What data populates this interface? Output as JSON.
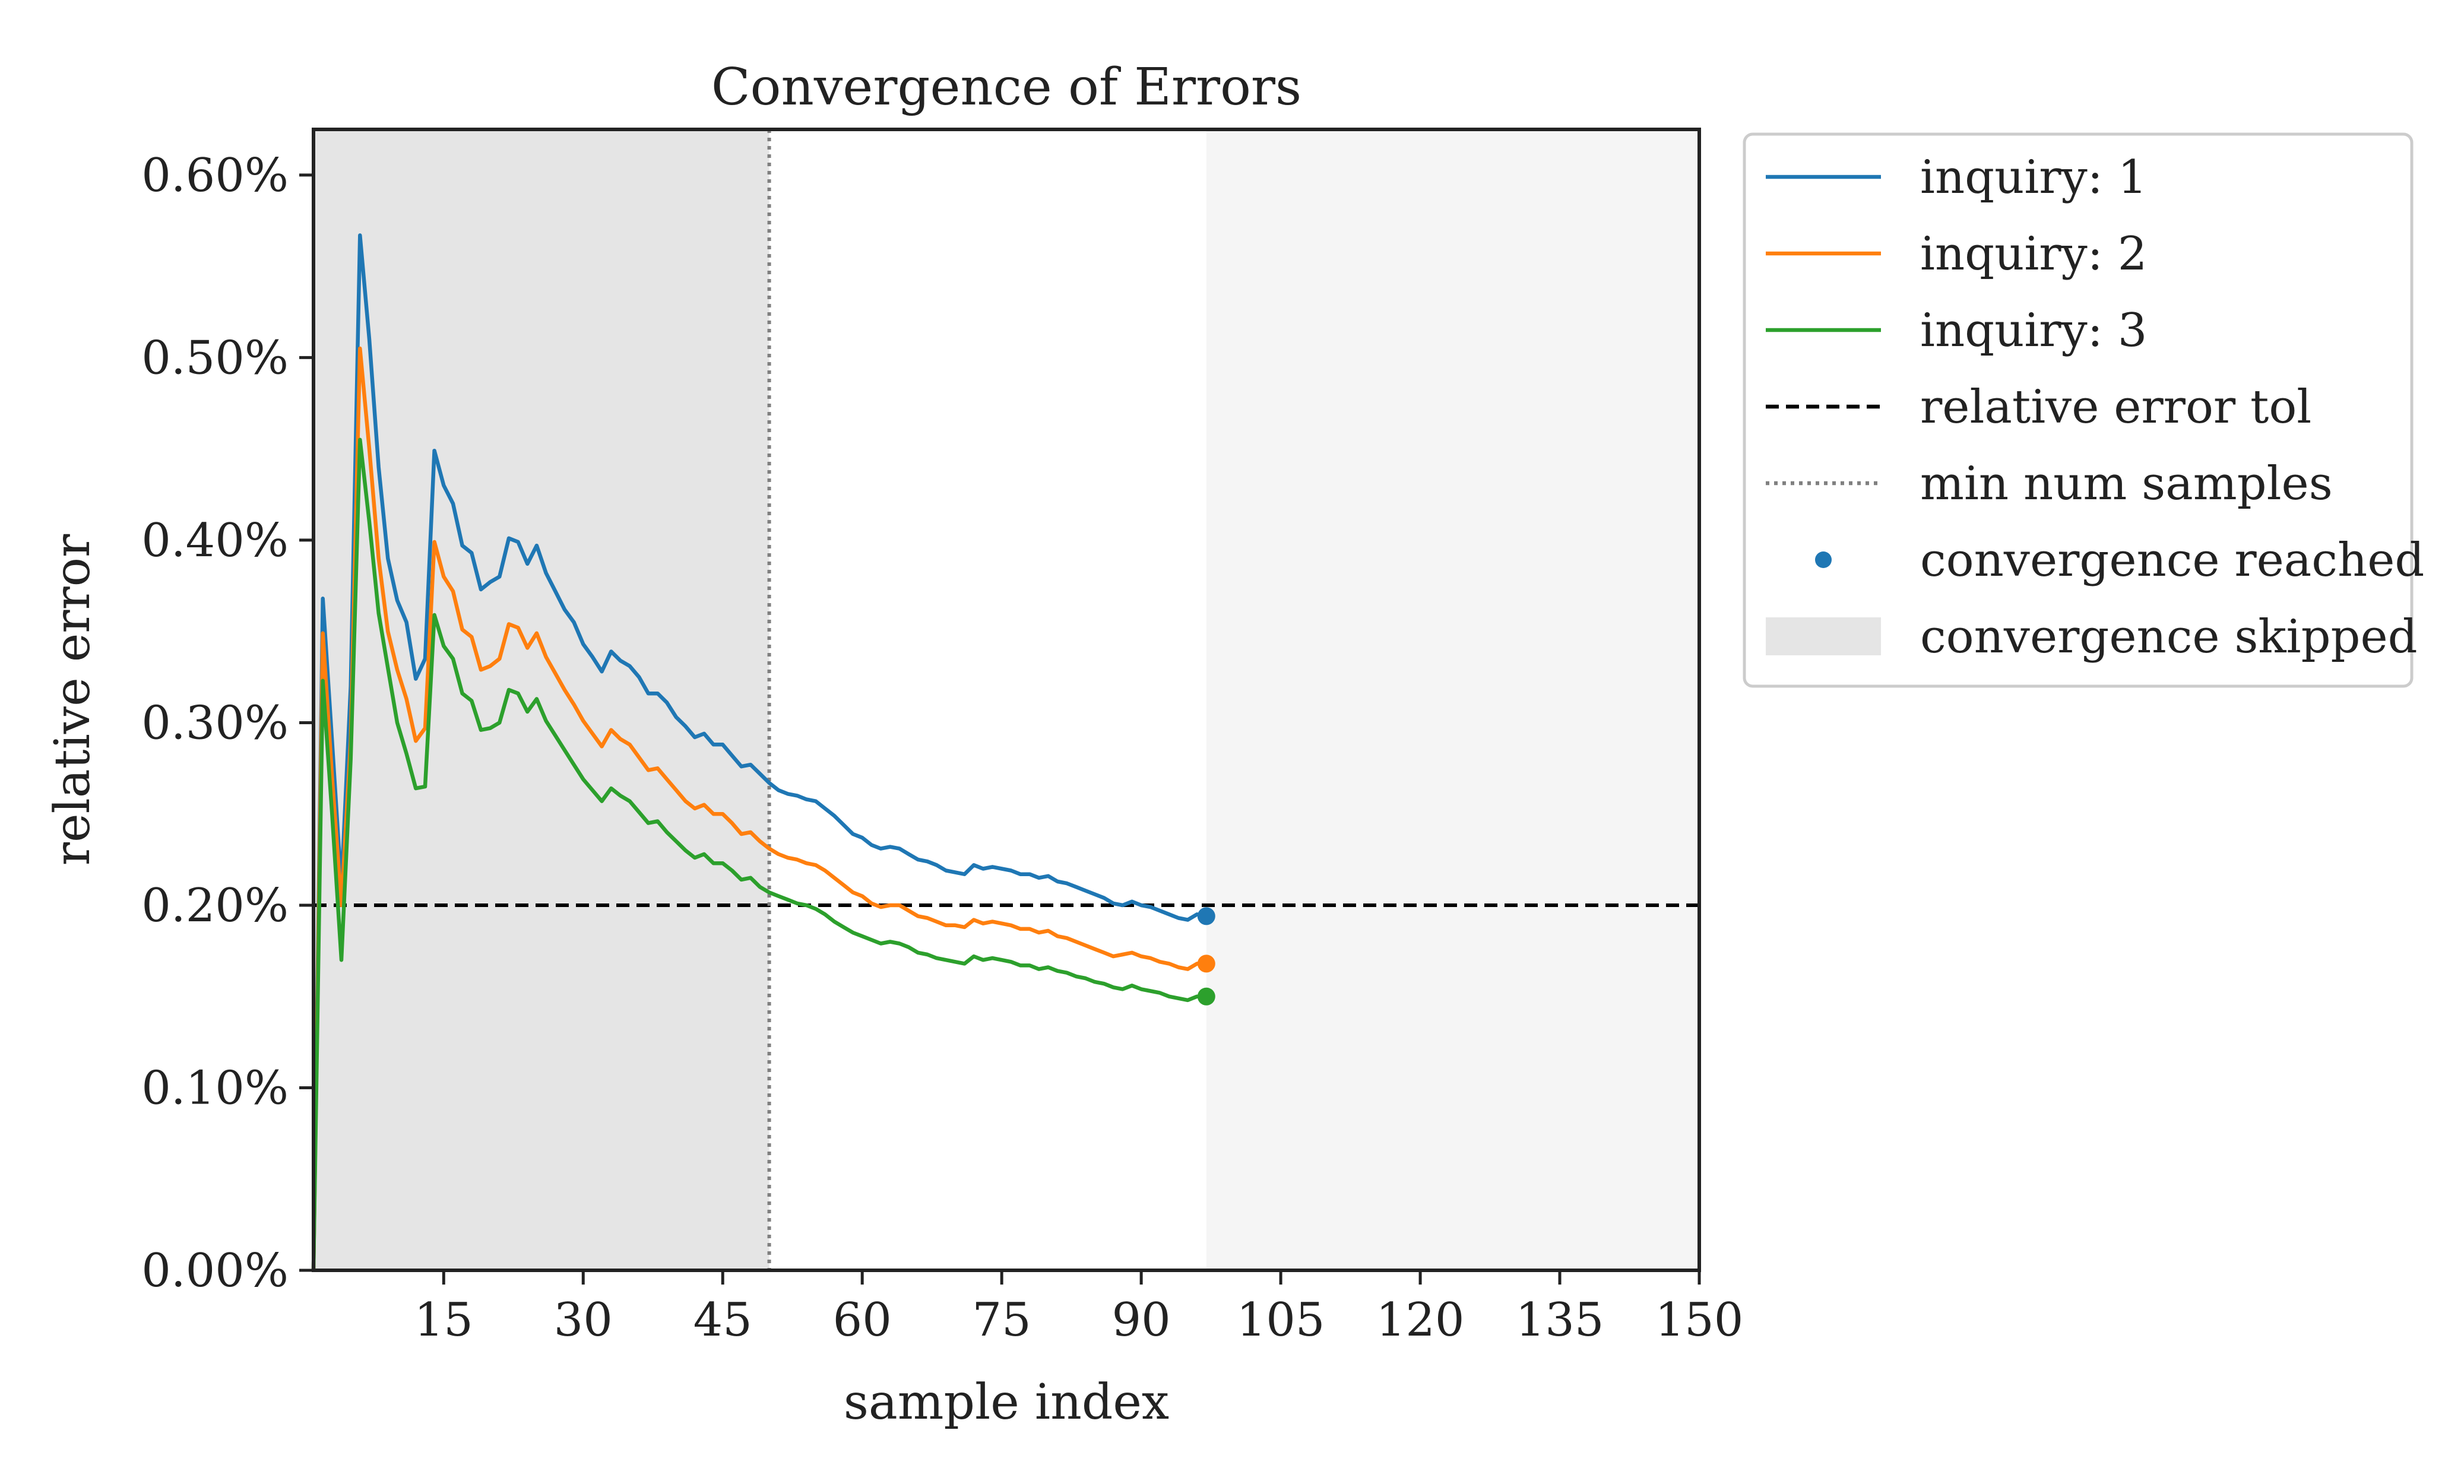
{
  "chart_data": {
    "type": "line",
    "title": "Convergence of Errors",
    "xlabel": "sample index",
    "ylabel": "relative error",
    "xlim": [
      1,
      150
    ],
    "ylim": [
      0.0,
      0.00625
    ],
    "xticks": [
      15,
      30,
      45,
      60,
      75,
      90,
      105,
      120,
      135,
      150
    ],
    "xtick_labels": [
      "15",
      "30",
      "45",
      "60",
      "75",
      "90",
      "105",
      "120",
      "135",
      "150"
    ],
    "yticks": [
      0.0,
      0.001,
      0.002,
      0.003,
      0.004,
      0.005,
      0.006
    ],
    "ytick_labels": [
      "0.00%",
      "0.10%",
      "0.20%",
      "0.30%",
      "0.40%",
      "0.50%",
      "0.60%"
    ],
    "grid": false,
    "legend_position": "outside-upper-right",
    "relative_error_tol": 0.002,
    "min_num_samples": 50,
    "convergence_index": 97,
    "skipped_regions": [
      [
        1,
        50
      ],
      [
        97,
        150
      ]
    ],
    "x": [
      1,
      2,
      3,
      4,
      5,
      6,
      7,
      8,
      9,
      10,
      11,
      12,
      13,
      14,
      15,
      16,
      17,
      18,
      19,
      20,
      21,
      22,
      23,
      24,
      25,
      26,
      27,
      28,
      29,
      30,
      31,
      32,
      33,
      34,
      35,
      36,
      37,
      38,
      39,
      40,
      41,
      42,
      43,
      44,
      45,
      46,
      47,
      48,
      49,
      50,
      51,
      52,
      53,
      54,
      55,
      56,
      57,
      58,
      59,
      60,
      61,
      62,
      63,
      64,
      65,
      66,
      67,
      68,
      69,
      70,
      71,
      72,
      73,
      74,
      75,
      76,
      77,
      78,
      79,
      80,
      81,
      82,
      83,
      84,
      85,
      86,
      87,
      88,
      89,
      90,
      91,
      92,
      93,
      94,
      95,
      96,
      97
    ],
    "series": [
      {
        "name": "inquiry: 1",
        "color": "#1f77b4",
        "values": [
          0.0,
          0.00368,
          0.0029,
          0.0021,
          0.0032,
          0.00567,
          0.0051,
          0.0044,
          0.0039,
          0.00367,
          0.00355,
          0.00324,
          0.00335,
          0.00449,
          0.0043,
          0.0042,
          0.00397,
          0.00393,
          0.00373,
          0.00377,
          0.0038,
          0.00401,
          0.00399,
          0.00387,
          0.00397,
          0.00382,
          0.00372,
          0.00362,
          0.00355,
          0.00343,
          0.00336,
          0.00328,
          0.00339,
          0.00334,
          0.00331,
          0.00325,
          0.00316,
          0.00316,
          0.00311,
          0.00303,
          0.00298,
          0.00292,
          0.00294,
          0.00288,
          0.00288,
          0.00282,
          0.00276,
          0.00277,
          0.00272,
          0.00267,
          0.00263,
          0.00261,
          0.0026,
          0.00258,
          0.00257,
          0.00253,
          0.00249,
          0.00244,
          0.00239,
          0.00237,
          0.00233,
          0.00231,
          0.00232,
          0.00231,
          0.00228,
          0.00225,
          0.00224,
          0.00222,
          0.00219,
          0.00218,
          0.00217,
          0.00222,
          0.0022,
          0.00221,
          0.0022,
          0.00219,
          0.00217,
          0.00217,
          0.00215,
          0.00216,
          0.00213,
          0.00212,
          0.0021,
          0.00208,
          0.00206,
          0.00204,
          0.00201,
          0.002,
          0.00202,
          0.002,
          0.00199,
          0.00197,
          0.00195,
          0.00193,
          0.00192,
          0.00195,
          0.00194
        ]
      },
      {
        "name": "inquiry: 2",
        "color": "#ff7f0e",
        "values": [
          0.0,
          0.00349,
          0.0027,
          0.002,
          0.0029,
          0.00505,
          0.0045,
          0.0039,
          0.0035,
          0.00329,
          0.00313,
          0.0029,
          0.00297,
          0.00399,
          0.0038,
          0.00372,
          0.00351,
          0.00347,
          0.00329,
          0.00331,
          0.00335,
          0.00354,
          0.00352,
          0.00341,
          0.00349,
          0.00336,
          0.00327,
          0.00318,
          0.0031,
          0.00301,
          0.00294,
          0.00287,
          0.00296,
          0.00291,
          0.00288,
          0.00281,
          0.00274,
          0.00275,
          0.00269,
          0.00263,
          0.00257,
          0.00253,
          0.00255,
          0.0025,
          0.0025,
          0.00245,
          0.00239,
          0.0024,
          0.00235,
          0.00231,
          0.00228,
          0.00226,
          0.00225,
          0.00223,
          0.00222,
          0.00219,
          0.00215,
          0.00211,
          0.00207,
          0.00205,
          0.00201,
          0.00199,
          0.002,
          0.002,
          0.00197,
          0.00194,
          0.00193,
          0.00191,
          0.00189,
          0.00189,
          0.00188,
          0.00192,
          0.0019,
          0.00191,
          0.0019,
          0.00189,
          0.00187,
          0.00187,
          0.00185,
          0.00186,
          0.00183,
          0.00182,
          0.0018,
          0.00178,
          0.00176,
          0.00174,
          0.00172,
          0.00173,
          0.00174,
          0.00172,
          0.00171,
          0.00169,
          0.00168,
          0.00166,
          0.00165,
          0.00168,
          0.00168
        ]
      },
      {
        "name": "inquiry: 3",
        "color": "#2ca02c",
        "values": [
          0.0,
          0.00323,
          0.0025,
          0.0017,
          0.0028,
          0.00455,
          0.0041,
          0.0036,
          0.0033,
          0.003,
          0.00283,
          0.00264,
          0.00265,
          0.00359,
          0.00342,
          0.00335,
          0.00316,
          0.00312,
          0.00296,
          0.00297,
          0.003,
          0.00318,
          0.00316,
          0.00306,
          0.00313,
          0.00301,
          0.00293,
          0.00285,
          0.00277,
          0.00269,
          0.00263,
          0.00257,
          0.00264,
          0.0026,
          0.00257,
          0.00251,
          0.00245,
          0.00246,
          0.0024,
          0.00235,
          0.0023,
          0.00226,
          0.00228,
          0.00223,
          0.00223,
          0.00219,
          0.00214,
          0.00215,
          0.0021,
          0.00207,
          0.00205,
          0.00203,
          0.00201,
          0.002,
          0.00198,
          0.00195,
          0.00191,
          0.00188,
          0.00185,
          0.00183,
          0.00181,
          0.00179,
          0.0018,
          0.00179,
          0.00177,
          0.00174,
          0.00173,
          0.00171,
          0.0017,
          0.00169,
          0.00168,
          0.00172,
          0.0017,
          0.00171,
          0.0017,
          0.00169,
          0.00167,
          0.00167,
          0.00165,
          0.00166,
          0.00164,
          0.00163,
          0.00161,
          0.0016,
          0.00158,
          0.00157,
          0.00155,
          0.00154,
          0.00156,
          0.00154,
          0.00153,
          0.00152,
          0.0015,
          0.00149,
          0.00148,
          0.0015,
          0.0015
        ]
      }
    ],
    "convergence_points": [
      {
        "series": "inquiry: 1",
        "x": 97,
        "y": 0.00194,
        "color": "#1f77b4"
      },
      {
        "series": "inquiry: 2",
        "x": 97,
        "y": 0.00168,
        "color": "#ff7f0e"
      },
      {
        "series": "inquiry: 3",
        "x": 97,
        "y": 0.0015,
        "color": "#2ca02c"
      }
    ],
    "legend": [
      {
        "label": "inquiry: 1",
        "kind": "line",
        "color": "#1f77b4"
      },
      {
        "label": "inquiry: 2",
        "kind": "line",
        "color": "#ff7f0e"
      },
      {
        "label": "inquiry: 3",
        "kind": "line",
        "color": "#2ca02c"
      },
      {
        "label": "relative error tol",
        "kind": "dashed",
        "color": "#000000"
      },
      {
        "label": "min num samples",
        "kind": "dotted",
        "color": "#808080"
      },
      {
        "label": "convergence reached",
        "kind": "marker",
        "color": "#1f77b4"
      },
      {
        "label": "convergence skipped",
        "kind": "patch",
        "color": "#e5e5e5"
      }
    ]
  }
}
